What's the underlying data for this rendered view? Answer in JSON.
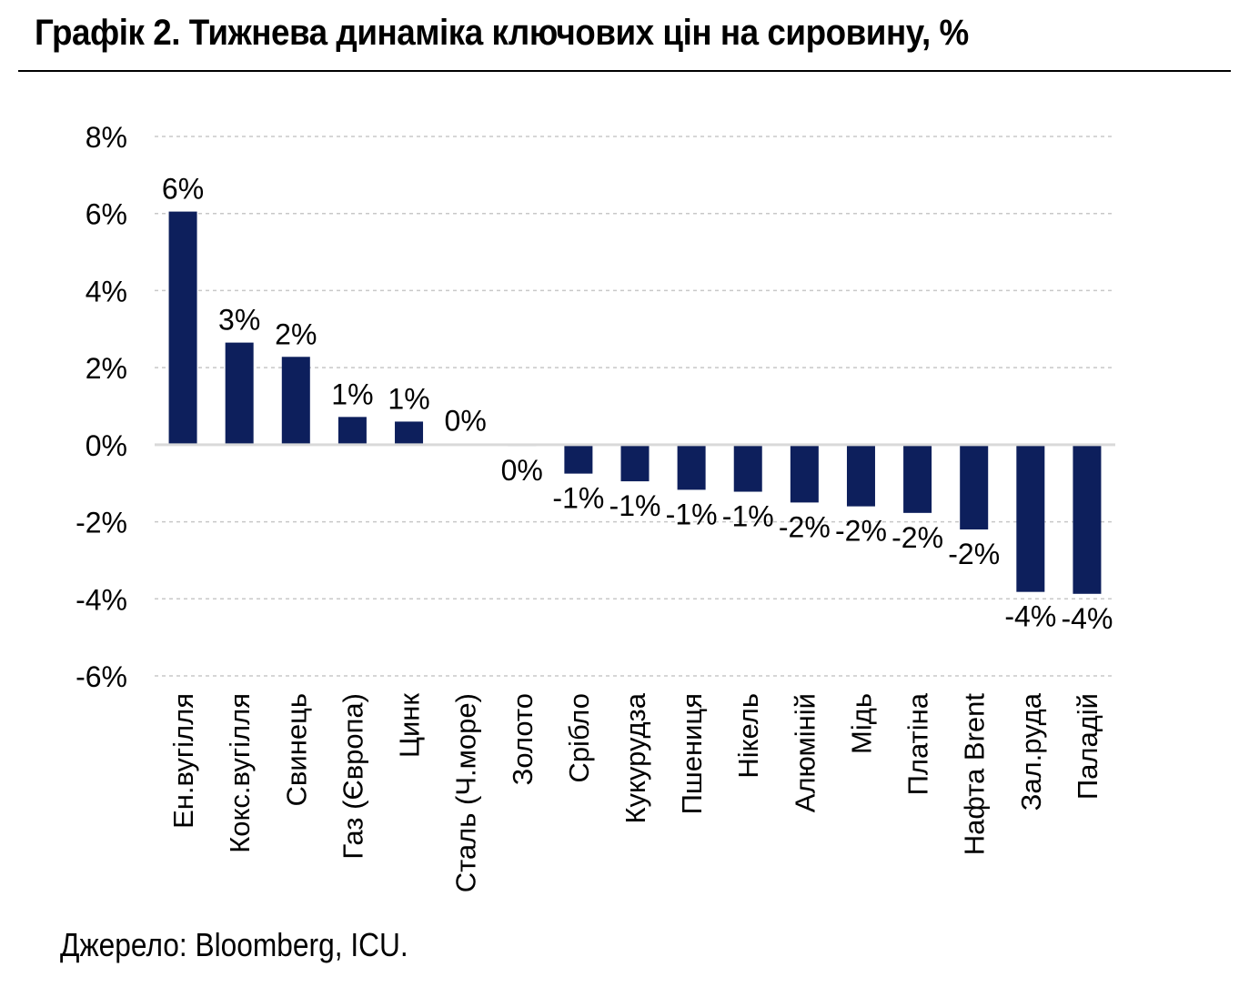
{
  "title": "Графік 2. Тижнева динаміка ключових цін на сировину, %",
  "source": "Джерело: Bloomberg, ICU.",
  "colors": {
    "bar": "#0d1f5c",
    "grid": "#c8c8c8",
    "axis": "#d9d9d9",
    "text": "#000000"
  },
  "chart_data": {
    "type": "bar",
    "title": "Графік 2. Тижнева динаміка ключових цін на сировину, %",
    "xlabel": "",
    "ylabel": "",
    "ylim": [
      -6,
      8
    ],
    "yticks": [
      8,
      6,
      4,
      2,
      0,
      -2,
      -4,
      -6
    ],
    "ytick_labels": [
      "8%",
      "6%",
      "4%",
      "2%",
      "0%",
      "-2%",
      "-4%",
      "-6%"
    ],
    "grid": true,
    "categories": [
      "Ен.вугілля",
      "Кокс.вугілля",
      "Свинець",
      "Газ (Європа)",
      "Цинк",
      "Сталь (Ч.море)",
      "Золото",
      "Срібло",
      "Кукурудза",
      "Пшениця",
      "Нікель",
      "Алюміній",
      "Мідь",
      "Платіна",
      "Нафта Brent",
      "Зал.руда",
      "Паладій"
    ],
    "values": [
      6.05,
      2.65,
      2.28,
      0.72,
      0.6,
      0.03,
      -0.03,
      -0.75,
      -0.95,
      -1.17,
      -1.22,
      -1.5,
      -1.6,
      -1.77,
      -2.2,
      -3.82,
      -3.87
    ],
    "data_labels": [
      "6%",
      "3%",
      "2%",
      "1%",
      "1%",
      "0%",
      "0%",
      "-1%",
      "-1%",
      "-1%",
      "-1%",
      "-2%",
      "-2%",
      "-2%",
      "-2%",
      "-4%",
      "-4%"
    ]
  }
}
